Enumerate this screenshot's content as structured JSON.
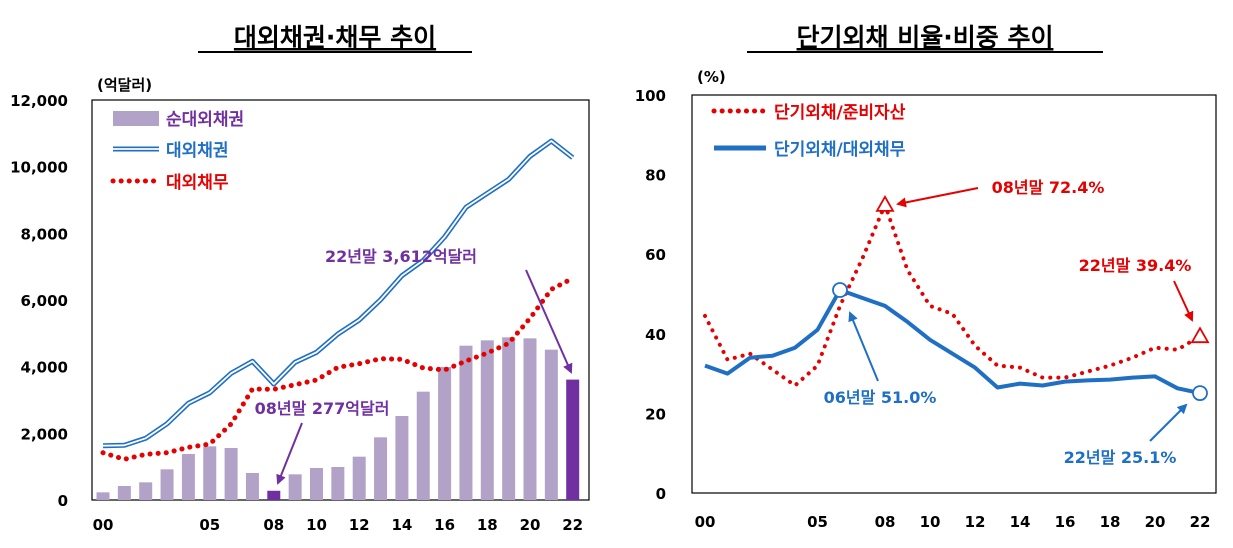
{
  "chart_data": [
    {
      "type": "bar+line",
      "title": "대외채권·채무 추이",
      "ylabel": "(억달러)",
      "ylim": [
        0,
        12000
      ],
      "yticks": [
        "0",
        "2,000",
        "4,000",
        "6,000",
        "8,000",
        "10,000",
        "12,000"
      ],
      "x_tick_labels": [
        "00",
        "05",
        "08",
        "10",
        "12",
        "14",
        "16",
        "18",
        "20",
        "22"
      ],
      "x": [
        2000,
        2001,
        2002,
        2003,
        2004,
        2005,
        2006,
        2007,
        2008,
        2009,
        2010,
        2011,
        2012,
        2013,
        2014,
        2015,
        2016,
        2017,
        2018,
        2019,
        2020,
        2021,
        2022
      ],
      "legend": [
        "순대외채권",
        "대외채권",
        "대외채무"
      ],
      "series": [
        {
          "name": "순대외채권",
          "kind": "bar",
          "color": "#b3a2c7",
          "highlight_color": "#7030a0",
          "highlight_x": [
            2008,
            2022
          ],
          "values": [
            230,
            420,
            530,
            920,
            1380,
            1610,
            1560,
            810,
            277,
            770,
            960,
            990,
            1300,
            1880,
            2520,
            3250,
            3990,
            4630,
            4790,
            4880,
            4850,
            4510,
            3612
          ]
        },
        {
          "name": "대외채권",
          "kind": "line",
          "color": "#1f6fc5",
          "values": [
            1630,
            1640,
            1850,
            2290,
            2900,
            3220,
            3800,
            4160,
            3480,
            4130,
            4430,
            4980,
            5400,
            6010,
            6730,
            7190,
            7890,
            8780,
            9200,
            9620,
            10310,
            10770,
            10270
          ]
        },
        {
          "name": "대외채무",
          "kind": "line",
          "style": "dotted",
          "color": "#e60000",
          "values": [
            1420,
            1220,
            1370,
            1420,
            1580,
            1680,
            2280,
            3330,
            3320,
            3460,
            3600,
            3980,
            4090,
            4240,
            4220,
            3960,
            3900,
            4170,
            4410,
            4700,
            5450,
            6320,
            6650
          ]
        }
      ],
      "annotations": [
        {
          "text": "22년말 3,612억달러",
          "color": "#7030a0",
          "target_x": 2022
        },
        {
          "text": "08년말 277억달러",
          "color": "#7030a0",
          "target_x": 2008
        }
      ]
    },
    {
      "type": "line",
      "title": "단기외채 비율·비중 추이",
      "ylabel": "(%)",
      "ylim": [
        0,
        100
      ],
      "yticks": [
        "0",
        "20",
        "40",
        "60",
        "80",
        "100"
      ],
      "x_tick_labels": [
        "00",
        "05",
        "08",
        "10",
        "12",
        "14",
        "16",
        "18",
        "20",
        "22"
      ],
      "x": [
        2000,
        2001,
        2002,
        2003,
        2004,
        2005,
        2006,
        2007,
        2008,
        2009,
        2010,
        2011,
        2012,
        2013,
        2014,
        2015,
        2016,
        2017,
        2018,
        2019,
        2020,
        2021,
        2022
      ],
      "legend": [
        "단기외채/준비자산",
        "단기외채/대외채무"
      ],
      "series": [
        {
          "name": "단기외채/준비자산",
          "style": "dotted",
          "color": "#e60000",
          "values": [
            44.5,
            33.5,
            35,
            31,
            27,
            32,
            47,
            59,
            72.4,
            56,
            47,
            45,
            37,
            32,
            31.5,
            29,
            29,
            30.5,
            32,
            34,
            36.5,
            36,
            39.4
          ]
        },
        {
          "name": "단기외채/대외채무",
          "style": "solid",
          "color": "#1f6fc5",
          "values": [
            32,
            30,
            34,
            34.5,
            36.5,
            41,
            51,
            49,
            47,
            43,
            38.5,
            35,
            31.5,
            26.5,
            27.5,
            27,
            28,
            28.3,
            28.5,
            29,
            29.3,
            26.3,
            25.1
          ]
        }
      ],
      "annotations": [
        {
          "text": "08년말 72.4%",
          "color": "#e60000",
          "marker": "triangle",
          "target_x": 2008,
          "target_y": 72.4
        },
        {
          "text": "22년말 39.4%",
          "color": "#e60000",
          "marker": "triangle",
          "target_x": 2022,
          "target_y": 39.4
        },
        {
          "text": "06년말 51.0%",
          "color": "#1f6fc5",
          "marker": "circle",
          "target_x": 2006,
          "target_y": 51.0
        },
        {
          "text": "22년말 25.1%",
          "color": "#1f6fc5",
          "marker": "circle",
          "target_x": 2022,
          "target_y": 25.1
        }
      ]
    }
  ]
}
